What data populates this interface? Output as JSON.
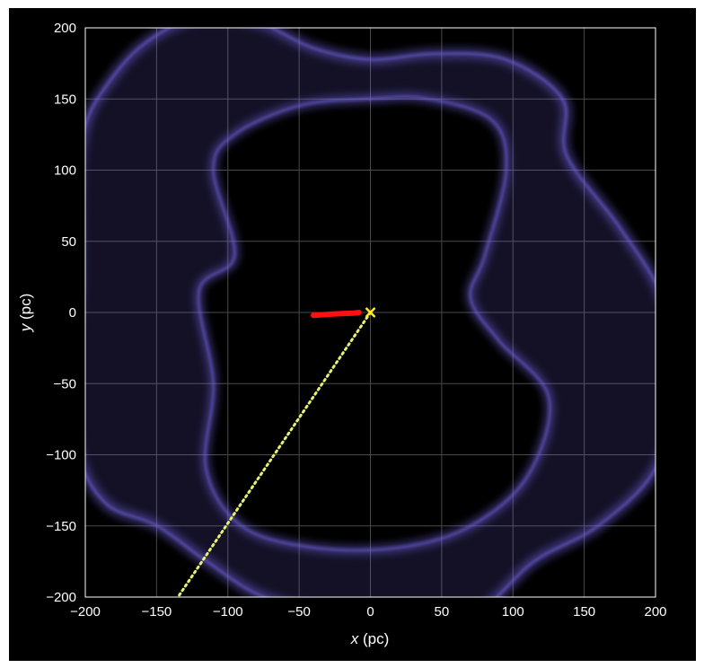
{
  "chart_data": {
    "type": "scatter",
    "title": "",
    "xlabel_var": "x",
    "xlabel_unit": "(pc)",
    "ylabel_var": "y",
    "ylabel_unit": "(pc)",
    "xlim": [
      -200,
      200
    ],
    "ylim": [
      -200,
      200
    ],
    "xticks": [
      -200,
      -150,
      -100,
      -50,
      0,
      50,
      100,
      150,
      200
    ],
    "yticks": [
      -200,
      -150,
      -100,
      -50,
      0,
      50,
      100,
      150,
      200
    ],
    "xtick_labels": [
      "−200",
      "−150",
      "−100",
      "−50",
      "0",
      "50",
      "100",
      "150",
      "200"
    ],
    "ytick_labels": [
      "−200",
      "−150",
      "−100",
      "−50",
      "0",
      "50",
      "100",
      "150",
      "200"
    ],
    "grid": true,
    "colors": {
      "background": "#000000",
      "ring": "#7a6cf0",
      "track": "#ff1010",
      "path": "#e8f070",
      "marker": "#ffee22",
      "grid": "#4a4a4a",
      "text": "#ffffff"
    },
    "ring_outer": [
      [
        -200,
        132
      ],
      [
        -185,
        160
      ],
      [
        -160,
        188
      ],
      [
        -125,
        206
      ],
      [
        -80,
        204
      ],
      [
        -40,
        186
      ],
      [
        0,
        178
      ],
      [
        45,
        182
      ],
      [
        95,
        178
      ],
      [
        135,
        150
      ],
      [
        138,
        110
      ],
      [
        175,
        60
      ],
      [
        205,
        10
      ],
      [
        215,
        -50
      ],
      [
        200,
        -110
      ],
      [
        160,
        -150
      ],
      [
        115,
        -175
      ],
      [
        75,
        -210
      ],
      [
        30,
        -212
      ],
      [
        -20,
        -212
      ],
      [
        -75,
        -200
      ],
      [
        -115,
        -175
      ],
      [
        -150,
        -150
      ],
      [
        -185,
        -135
      ],
      [
        -205,
        -100
      ],
      [
        -210,
        -40
      ],
      [
        -205,
        20
      ],
      [
        -205,
        90
      ]
    ],
    "ring_inner": [
      [
        -110,
        100
      ],
      [
        -95,
        40
      ],
      [
        -120,
        15
      ],
      [
        -110,
        -50
      ],
      [
        -115,
        -110
      ],
      [
        -90,
        -150
      ],
      [
        -40,
        -165
      ],
      [
        20,
        -165
      ],
      [
        70,
        -150
      ],
      [
        110,
        -115
      ],
      [
        125,
        -60
      ],
      [
        90,
        -20
      ],
      [
        70,
        10
      ],
      [
        80,
        40
      ],
      [
        95,
        100
      ],
      [
        85,
        135
      ],
      [
        40,
        150
      ],
      [
        0,
        150
      ],
      [
        -50,
        145
      ],
      [
        -95,
        125
      ]
    ],
    "track": [
      [
        -40,
        -2
      ],
      [
        -25,
        -1
      ],
      [
        -12,
        -0.5
      ],
      [
        -8,
        0
      ]
    ],
    "path": [
      [
        0,
        0
      ],
      [
        -135,
        -200
      ]
    ],
    "marker": [
      0,
      0
    ]
  }
}
